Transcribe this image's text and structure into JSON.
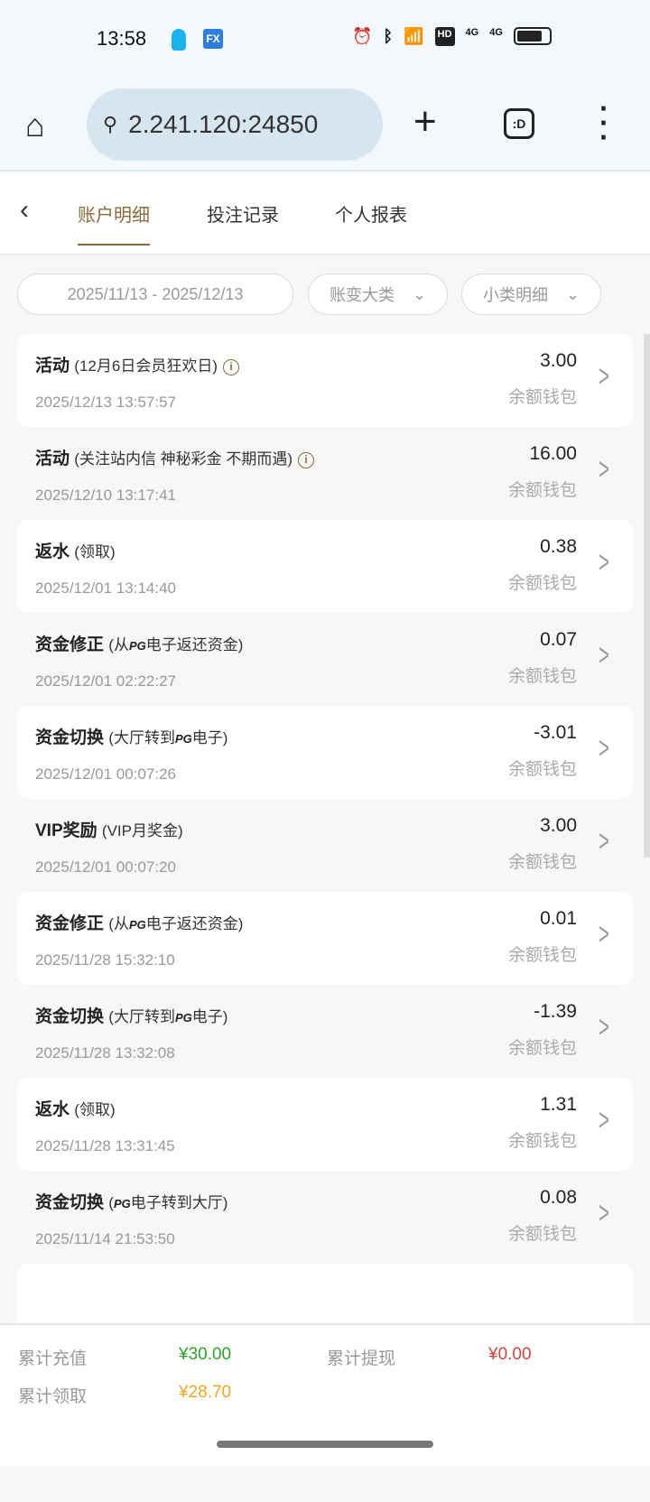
{
  "status_bar": {
    "time": "13:58",
    "icons": [
      "qq-icon",
      "fx-icon",
      "alarm-icon",
      "bluetooth-icon",
      "wifi-icon",
      "hd-icon",
      "4g-signal-icon",
      "4g-signal-icon",
      "battery-icon"
    ],
    "fx": "FX",
    "hd": "HD",
    "net1": "4G",
    "net2": "4G"
  },
  "browser": {
    "url": "2.241.120:24850",
    "tabs_label": ":D"
  },
  "tabs": [
    {
      "label": "账户明细",
      "active": true
    },
    {
      "label": "投注记录"
    },
    {
      "label": "个人报表"
    }
  ],
  "filters": {
    "date_range": "2025/11/13 - 2025/12/13",
    "category": "账变大类",
    "subcategory": "小类明细"
  },
  "wallet_label": "余额钱包",
  "records": [
    {
      "type": "活动",
      "pre": "(12月6日会员狂欢日)",
      "pg": "",
      "post": "",
      "info": true,
      "date": "2025/12/13 13:57:57",
      "amount": "3.00"
    },
    {
      "type": "活动",
      "pre": "(关注站内信 神秘彩金 不期而遇)",
      "pg": "",
      "post": "",
      "info": true,
      "date": "2025/12/10 13:17:41",
      "amount": "16.00"
    },
    {
      "type": "返水",
      "pre": "(领取)",
      "pg": "",
      "post": "",
      "date": "2025/12/01 13:14:40",
      "amount": "0.38"
    },
    {
      "type": "资金修正",
      "pre": "(从",
      "pg": "PG",
      "post": "电子返还资金)",
      "date": "2025/12/01 02:22:27",
      "amount": "0.07"
    },
    {
      "type": "资金切换",
      "pre": "(大厅转到",
      "pg": "PG",
      "post": "电子)",
      "date": "2025/12/01 00:07:26",
      "amount": "-3.01"
    },
    {
      "type": "VIP奖励",
      "pre": "(VIP月奖金)",
      "pg": "",
      "post": "",
      "date": "2025/12/01 00:07:20",
      "amount": "3.00"
    },
    {
      "type": "资金修正",
      "pre": "(从",
      "pg": "PG",
      "post": "电子返还资金)",
      "date": "2025/11/28 15:32:10",
      "amount": "0.01"
    },
    {
      "type": "资金切换",
      "pre": "(大厅转到",
      "pg": "PG",
      "post": "电子)",
      "date": "2025/11/28 13:32:08",
      "amount": "-1.39"
    },
    {
      "type": "返水",
      "pre": "(领取)",
      "pg": "",
      "post": "",
      "date": "2025/11/28 13:31:45",
      "amount": "1.31"
    },
    {
      "type": "资金切换",
      "pre": "(",
      "pg": "PG",
      "post": "电子转到大厅)",
      "date": "2025/11/14 21:53:50",
      "amount": "0.08"
    }
  ],
  "summary": {
    "deposit_label": "累计充值",
    "deposit": "¥30.00",
    "withdraw_label": "累计提现",
    "withdraw": "¥0.00",
    "claimed_label": "累计领取",
    "claimed": "¥28.70"
  },
  "colors": {
    "accent": "#8a6a3a",
    "deposit": "#2aa52a",
    "withdraw": "#d0473c",
    "claimed": "#f0a820"
  }
}
